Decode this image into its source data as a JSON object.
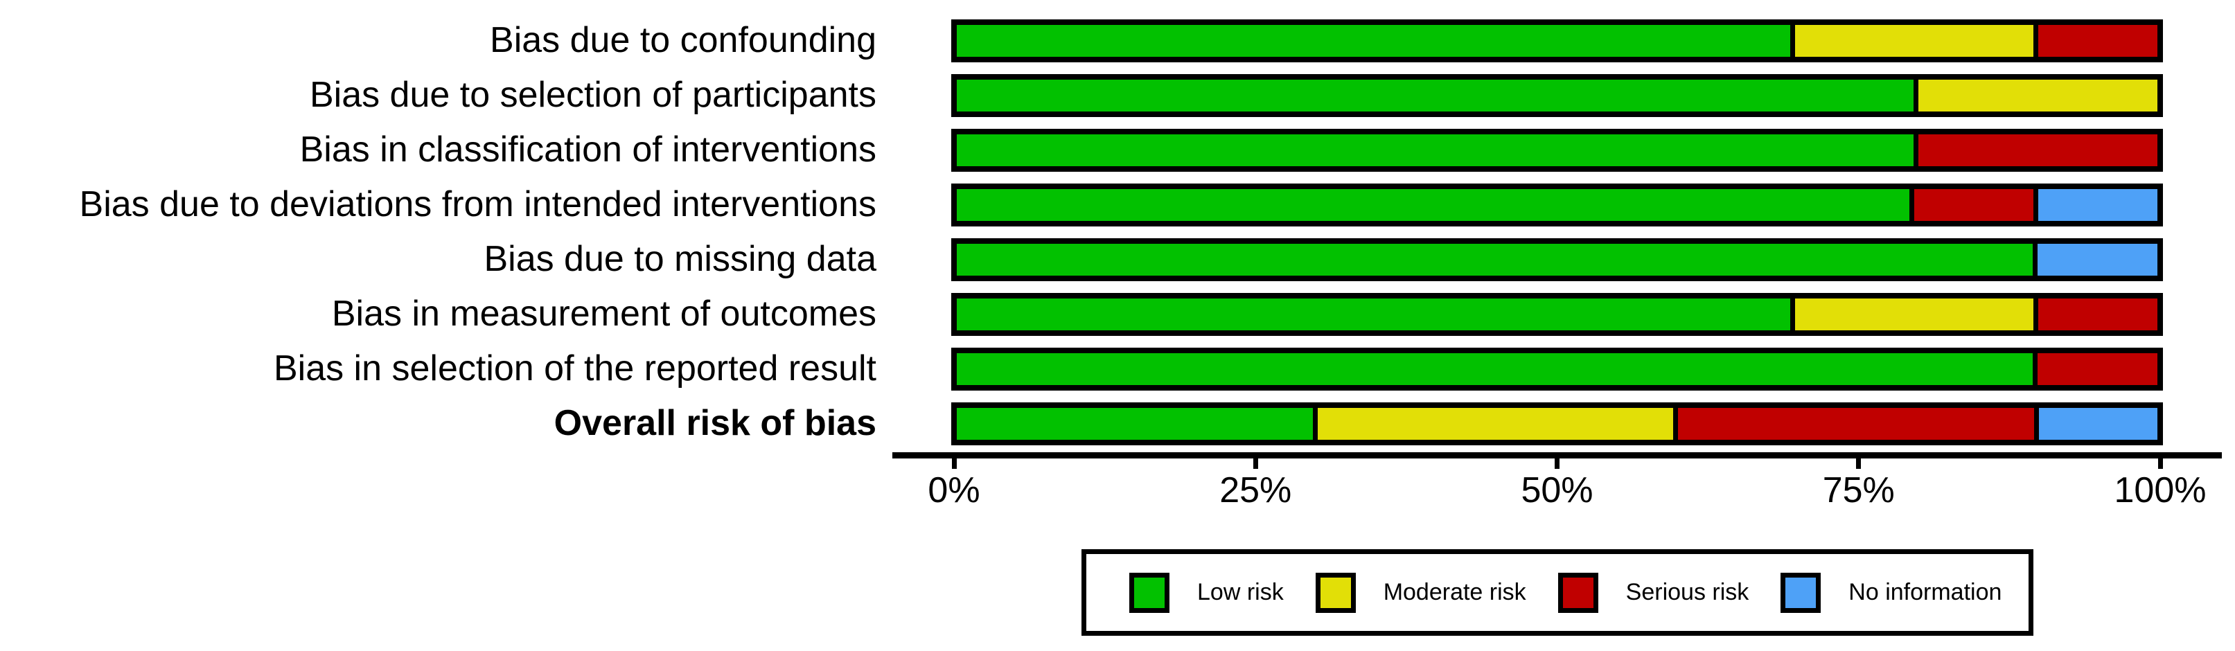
{
  "chart_data": {
    "type": "bar",
    "orientation": "horizontal_stacked",
    "title": "",
    "xlabel": "",
    "ylabel": "",
    "xlim": [
      0,
      100
    ],
    "grid": false,
    "legend_position": "bottom",
    "x_tick_values": [
      0,
      25,
      50,
      75,
      100
    ],
    "x_tick_labels": [
      "0%",
      "25%",
      "50%",
      "75%",
      "100%"
    ],
    "categories": [
      "Bias due to confounding",
      "Bias due to selection of participants",
      "Bias in classification of interventions",
      "Bias due to deviations from intended interventions",
      "Bias due to missing data",
      "Bias in measurement of outcomes",
      "Bias in selection of the reported result",
      "Overall risk of bias"
    ],
    "emphasized_category": "Overall risk of bias",
    "series": [
      {
        "name": "Low risk",
        "color": "#02C100",
        "values": [
          70,
          80,
          80,
          80,
          90,
          70,
          90,
          30
        ]
      },
      {
        "name": "Moderate risk",
        "color": "#E2DF07",
        "values": [
          20,
          20,
          0,
          0,
          0,
          20,
          0,
          30
        ]
      },
      {
        "name": "Serious risk",
        "color": "#C00000",
        "values": [
          10,
          0,
          20,
          10,
          0,
          10,
          10,
          30
        ]
      },
      {
        "name": "No information",
        "color": "#4EA1F7",
        "values": [
          0,
          0,
          0,
          10,
          10,
          0,
          0,
          10
        ]
      }
    ]
  },
  "legend": {
    "items": [
      {
        "label": "Low risk",
        "color": "#02C100"
      },
      {
        "label": "Moderate risk",
        "color": "#E2DF07"
      },
      {
        "label": "Serious risk",
        "color": "#C00000"
      },
      {
        "label": "No information",
        "color": "#4EA1F7"
      }
    ]
  },
  "colors": {
    "background": "#FFFFFF",
    "axis": "#000000",
    "text": "#000000",
    "bar_border": "#000000"
  }
}
